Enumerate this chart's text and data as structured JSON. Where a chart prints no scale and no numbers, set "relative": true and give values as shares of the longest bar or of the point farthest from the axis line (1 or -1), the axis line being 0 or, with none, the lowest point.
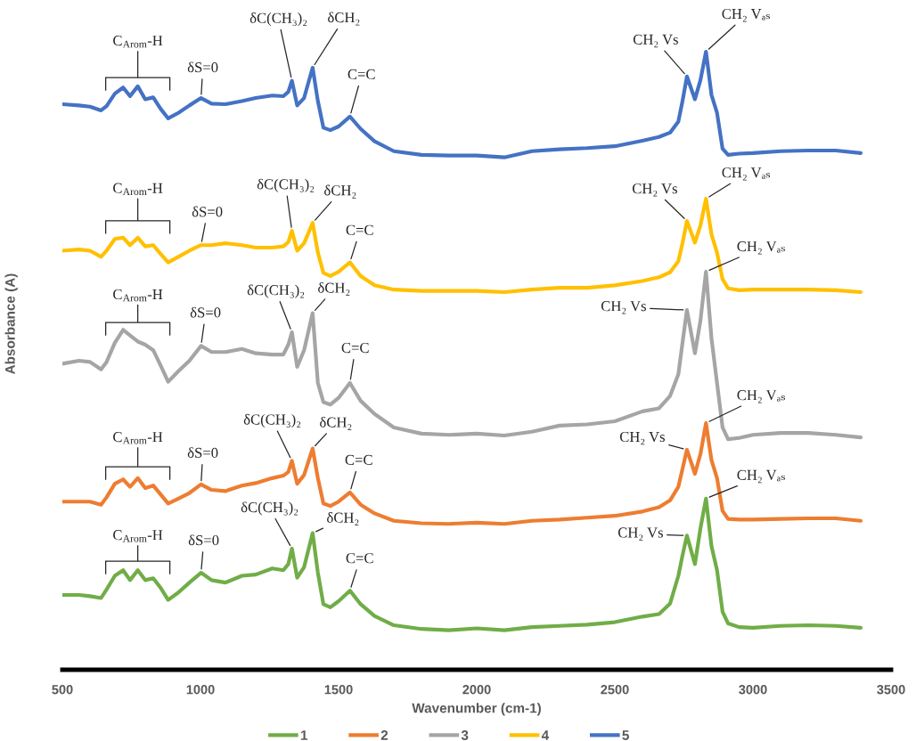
{
  "chart_data": {
    "type": "line",
    "relative": true,
    "xlabel": "Wavenumber (cm-1)",
    "ylabel": "Absorbance (A)",
    "xlim": [
      500,
      3500
    ],
    "xticks": [
      500,
      1000,
      1500,
      2000,
      2500,
      3000,
      3500
    ],
    "legend": "bottom",
    "x": [
      500,
      560,
      600,
      640,
      660,
      690,
      720,
      745,
      773,
      800,
      829,
      855,
      883,
      920,
      960,
      1002,
      1040,
      1090,
      1150,
      1200,
      1260,
      1300,
      1318,
      1331,
      1350,
      1375,
      1406,
      1425,
      1445,
      1470,
      1500,
      1541,
      1580,
      1630,
      1700,
      1800,
      1900,
      2000,
      2100,
      2200,
      2300,
      2400,
      2500,
      2600,
      2660,
      2700,
      2730,
      2745,
      2761,
      2790,
      2810,
      2830,
      2850,
      2870,
      2890,
      2910,
      2950,
      3000,
      3100,
      3200,
      3300,
      3390
    ],
    "series": [
      {
        "name": "1",
        "color": "#70ad47",
        "values": [
          0.121,
          0.121,
          0.119,
          0.116,
          0.13,
          0.152,
          0.161,
          0.145,
          0.161,
          0.145,
          0.148,
          0.133,
          0.113,
          0.125,
          0.141,
          0.157,
          0.145,
          0.141,
          0.152,
          0.154,
          0.164,
          0.161,
          0.171,
          0.196,
          0.149,
          0.166,
          0.221,
          0.157,
          0.106,
          0.101,
          0.111,
          0.128,
          0.106,
          0.087,
          0.072,
          0.066,
          0.064,
          0.067,
          0.064,
          0.069,
          0.071,
          0.073,
          0.077,
          0.086,
          0.09,
          0.107,
          0.152,
          0.185,
          0.217,
          0.171,
          0.229,
          0.277,
          0.2,
          0.161,
          0.094,
          0.075,
          0.069,
          0.068,
          0.071,
          0.072,
          0.071,
          0.068
        ]
      },
      {
        "name": "2",
        "color": "#ed7d31",
        "values": [
          0.272,
          0.272,
          0.272,
          0.267,
          0.279,
          0.301,
          0.308,
          0.296,
          0.31,
          0.294,
          0.298,
          0.284,
          0.269,
          0.277,
          0.286,
          0.3,
          0.291,
          0.289,
          0.298,
          0.302,
          0.31,
          0.314,
          0.32,
          0.338,
          0.301,
          0.315,
          0.358,
          0.31,
          0.269,
          0.265,
          0.272,
          0.287,
          0.267,
          0.253,
          0.241,
          0.237,
          0.236,
          0.238,
          0.236,
          0.241,
          0.243,
          0.246,
          0.249,
          0.256,
          0.263,
          0.274,
          0.296,
          0.325,
          0.356,
          0.317,
          0.349,
          0.399,
          0.339,
          0.31,
          0.257,
          0.244,
          0.243,
          0.243,
          0.244,
          0.245,
          0.245,
          0.241
        ]
      },
      {
        "name": "3",
        "color": "#a5a5a5",
        "values": [
          0.495,
          0.5,
          0.498,
          0.486,
          0.498,
          0.529,
          0.55,
          0.541,
          0.531,
          0.526,
          0.517,
          0.493,
          0.466,
          0.483,
          0.5,
          0.524,
          0.514,
          0.514,
          0.519,
          0.512,
          0.51,
          0.51,
          0.526,
          0.546,
          0.49,
          0.517,
          0.577,
          0.464,
          0.433,
          0.429,
          0.44,
          0.464,
          0.435,
          0.414,
          0.392,
          0.382,
          0.38,
          0.382,
          0.379,
          0.385,
          0.395,
          0.397,
          0.402,
          0.418,
          0.423,
          0.443,
          0.478,
          0.529,
          0.582,
          0.512,
          0.565,
          0.644,
          0.536,
          0.464,
          0.392,
          0.373,
          0.375,
          0.38,
          0.383,
          0.383,
          0.38,
          0.376
        ]
      },
      {
        "name": "4",
        "color": "#ffc000",
        "values": [
          0.678,
          0.68,
          0.678,
          0.668,
          0.678,
          0.697,
          0.699,
          0.687,
          0.699,
          0.685,
          0.687,
          0.673,
          0.659,
          0.668,
          0.678,
          0.687,
          0.687,
          0.69,
          0.687,
          0.683,
          0.683,
          0.685,
          0.692,
          0.71,
          0.678,
          0.69,
          0.723,
          0.675,
          0.642,
          0.637,
          0.644,
          0.659,
          0.637,
          0.622,
          0.615,
          0.613,
          0.613,
          0.613,
          0.611,
          0.615,
          0.618,
          0.618,
          0.622,
          0.629,
          0.635,
          0.643,
          0.661,
          0.69,
          0.726,
          0.691,
          0.719,
          0.762,
          0.704,
          0.675,
          0.632,
          0.617,
          0.614,
          0.615,
          0.615,
          0.615,
          0.614,
          0.611
        ]
      },
      {
        "name": "5",
        "color": "#4472c4",
        "values": [
          0.915,
          0.913,
          0.911,
          0.905,
          0.912,
          0.932,
          0.942,
          0.928,
          0.944,
          0.923,
          0.926,
          0.908,
          0.892,
          0.901,
          0.913,
          0.925,
          0.916,
          0.915,
          0.92,
          0.925,
          0.929,
          0.928,
          0.935,
          0.953,
          0.913,
          0.925,
          0.974,
          0.92,
          0.877,
          0.873,
          0.879,
          0.895,
          0.875,
          0.855,
          0.839,
          0.833,
          0.832,
          0.832,
          0.829,
          0.839,
          0.842,
          0.844,
          0.847,
          0.856,
          0.862,
          0.869,
          0.887,
          0.92,
          0.96,
          0.923,
          0.954,
          1.0,
          0.93,
          0.901,
          0.843,
          0.833,
          0.835,
          0.836,
          0.839,
          0.84,
          0.84,
          0.836
        ]
      }
    ],
    "annotations": [
      "C$_{Arom}$-H",
      {
        "text": "δS=0",
        "x": 1002,
        "y": 0.157
      },
      {
        "text": "δC(CH₃)₂",
        "x": 1331,
        "y": 0.196
      },
      {
        "text": "δCH₂",
        "x": 1406,
        "y": 0.221
      },
      {
        "text": "C=C",
        "x": 1541,
        "y": 0.128
      },
      {
        "text": "CH₂ Vs",
        "x": 2761,
        "y": 0.217
      },
      {
        "text": "CH₂ Vₐₛ",
        "x": 2830,
        "y": 0.277
      },
      "C$_{Arom}$-H",
      {
        "text": "δS=0",
        "x": 1002,
        "y": 0.3
      },
      {
        "text": "δC(CH₃)₂",
        "x": 1331,
        "y": 0.338
      },
      {
        "text": "δCH₂",
        "x": 1406,
        "y": 0.358
      },
      {
        "text": "C=C",
        "x": 1541,
        "y": 0.287
      },
      {
        "text": "CH₂ Vs",
        "x": 2761,
        "y": 0.356
      },
      {
        "text": "CH₂ Vₐₛ",
        "x": 2830,
        "y": 0.399
      },
      "C$_{Arom}$-H",
      {
        "text": "δS=0",
        "x": 1002,
        "y": 0.524
      },
      {
        "text": "δC(CH₃)₂",
        "x": 1331,
        "y": 0.546
      },
      {
        "text": "δCH₂",
        "x": 1406,
        "y": 0.577
      },
      {
        "text": "C=C",
        "x": 1541,
        "y": 0.464
      },
      {
        "text": "CH₂ Vs",
        "x": 2761,
        "y": 0.582
      },
      {
        "text": "CH₂ Vₐₛ",
        "x": 2830,
        "y": 0.644
      },
      "C$_{Arom}$-H",
      {
        "text": "δS=0",
        "x": 1002,
        "y": 0.687
      },
      {
        "text": "δC(CH₃)₂",
        "x": 1331,
        "y": 0.71
      },
      {
        "text": "δCH₂",
        "x": 1406,
        "y": 0.723
      },
      {
        "text": "C=C",
        "x": 1541,
        "y": 0.659
      },
      {
        "text": "CH₂ Vs",
        "x": 2761,
        "y": 0.726
      },
      {
        "text": "CH₂ Vₐₛ",
        "x": 2830,
        "y": 0.762
      },
      "C$_{Arom}$-H",
      {
        "text": "δS=0",
        "x": 1002,
        "y": 0.925
      },
      {
        "text": "δC(CH₃)₂",
        "x": 1331,
        "y": 0.953
      },
      {
        "text": "δCH₂",
        "x": 1406,
        "y": 0.974
      },
      {
        "text": "C=C",
        "x": 1541,
        "y": 0.895
      },
      {
        "text": "CH₂ Vs",
        "x": 2761,
        "y": 0.96
      },
      {
        "text": "CH₂ Vₐₛ",
        "x": 2830,
        "y": 1.0
      }
    ]
  }
}
